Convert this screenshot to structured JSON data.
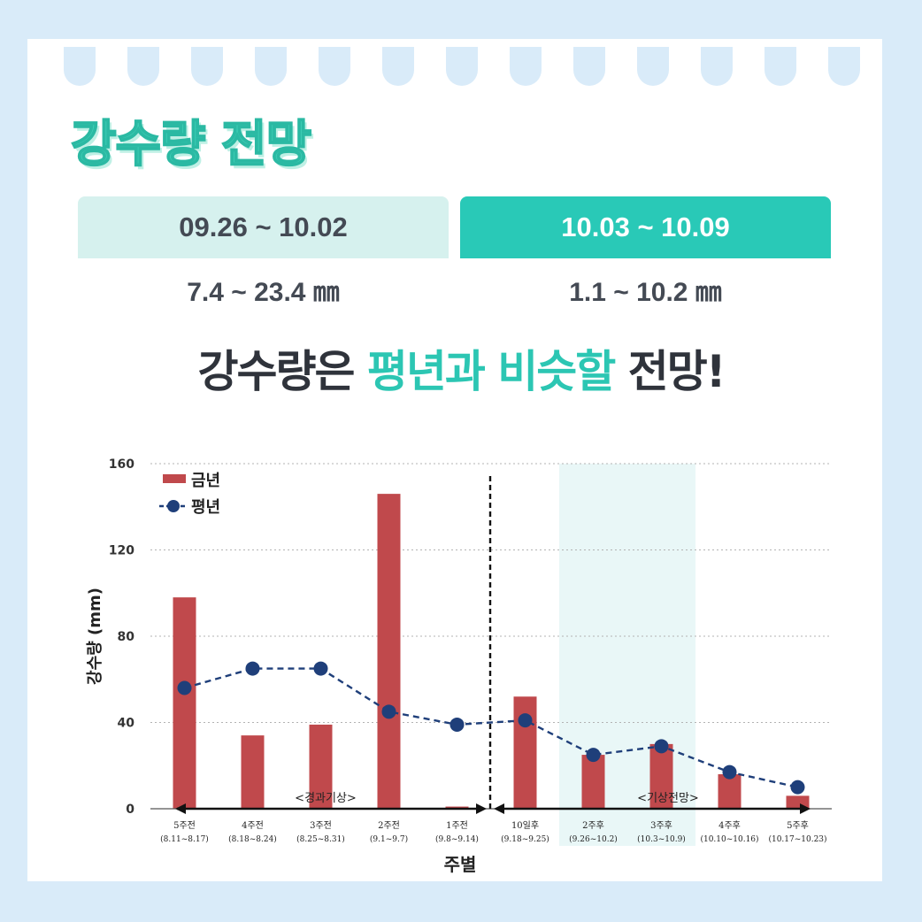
{
  "header": {
    "title": "강수량 전망"
  },
  "periods": [
    {
      "label": "09.26 ~ 10.02",
      "range": "7.4 ~ 23.4 ㎜"
    },
    {
      "label": "10.03 ~ 10.09",
      "range": "1.1 ~ 10.2 ㎜"
    }
  ],
  "headline": {
    "part1": "강수량은 ",
    "highlight": "평년과 비슷할",
    "part2": " 전망!"
  },
  "colors": {
    "accent": "#2cc6b3",
    "bar": "#c0494c",
    "line": "#1f3f7a",
    "shade": "#e9f7f7"
  },
  "chart_data": {
    "type": "bar",
    "ylabel": "강수량 (mm)",
    "xlabel": "주별",
    "ylim": [
      0,
      160
    ],
    "yticks": [
      0,
      40,
      80,
      120,
      160
    ],
    "grid": true,
    "legend_position": "top-left",
    "categories": [
      {
        "label": "5주전",
        "sub": "(8.11~8.17)"
      },
      {
        "label": "4주전",
        "sub": "(8.18~8.24)"
      },
      {
        "label": "3주전",
        "sub": "(8.25~8.31)"
      },
      {
        "label": "2주전",
        "sub": "(9.1~9.7)"
      },
      {
        "label": "1주전",
        "sub": "(9.8~9.14)"
      },
      {
        "label": "10일후",
        "sub": "(9.18~9.25)"
      },
      {
        "label": "2주후",
        "sub": "(9.26~10.2)"
      },
      {
        "label": "3주후",
        "sub": "(10.3~10.9)"
      },
      {
        "label": "4주후",
        "sub": "(10.10~10.16)"
      },
      {
        "label": "5주후",
        "sub": "(10.17~10.23)"
      }
    ],
    "series": [
      {
        "name": "금년",
        "kind": "bar",
        "values": [
          98,
          34,
          39,
          146,
          1,
          52,
          25,
          30,
          16,
          6
        ]
      },
      {
        "name": "평년",
        "kind": "line",
        "values": [
          56,
          65,
          65,
          45,
          39,
          41,
          25,
          29,
          17,
          10
        ]
      }
    ],
    "annotations": {
      "past": "<경과기상>",
      "future": "<기상전망>"
    },
    "highlight_categories": [
      "2주후",
      "3주후"
    ],
    "divider_after_category": "1주전"
  }
}
